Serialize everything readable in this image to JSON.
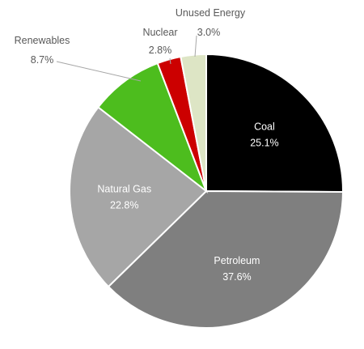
{
  "chart_data": {
    "type": "pie",
    "title": "",
    "start_angle": "12 o'clock",
    "direction": "clockwise",
    "slices": [
      {
        "label": "Coal",
        "value": 25.1,
        "value_label": "25.1%",
        "color": "#000000",
        "text_color": "#ffffff",
        "label_position": "inside"
      },
      {
        "label": "Petroleum",
        "value": 37.6,
        "value_label": "37.6%",
        "color": "#7f7f7f",
        "text_color": "#ffffff",
        "label_position": "inside"
      },
      {
        "label": "Natural Gas",
        "value": 22.8,
        "value_label": "22.8%",
        "color": "#a6a6a6",
        "text_color": "#ffffff",
        "label_position": "inside"
      },
      {
        "label": "Renewables",
        "value": 8.7,
        "value_label": "8.7%",
        "color": "#4dbd1e",
        "text_color": "#595959",
        "label_position": "outside"
      },
      {
        "label": "Nuclear",
        "value": 2.8,
        "value_label": "2.8%",
        "color": "#cc0000",
        "text_color": "#595959",
        "label_position": "outside"
      },
      {
        "label": "Unused Energy",
        "value": 3.0,
        "value_label": "3.0%",
        "color": "#dde5c5",
        "text_color": "#595959",
        "label_position": "outside"
      }
    ],
    "legend": "none",
    "slice_border_color": "#ffffff",
    "leader_line_color": "#a6a6a6"
  }
}
